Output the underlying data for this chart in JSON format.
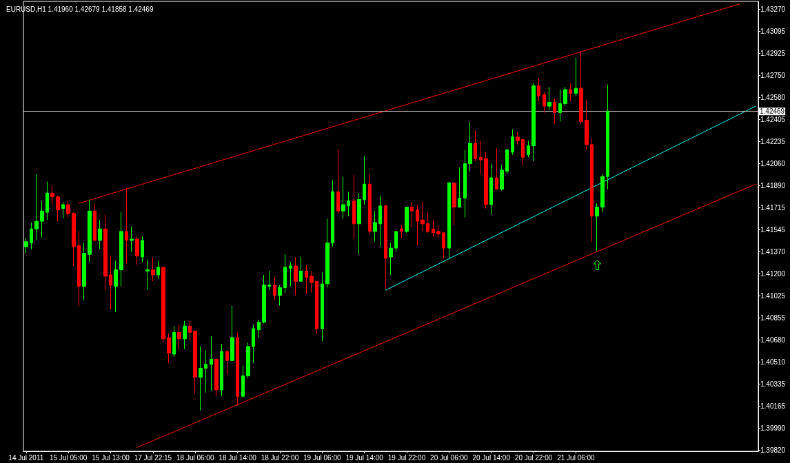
{
  "chart_data": {
    "type": "candlestick",
    "title": "EURUSD,H1 1.41960 1.42679 1.41858 1.42469",
    "categories": [
      "14 Jul 2011",
      null,
      null,
      null,
      null,
      null,
      null,
      null,
      "15 Jul 05:00",
      null,
      null,
      null,
      null,
      null,
      null,
      null,
      "15 Jul 13:00",
      null,
      null,
      null,
      null,
      null,
      null,
      null,
      "17 Jul 22:15",
      null,
      null,
      null,
      null,
      null,
      null,
      null,
      "18 Jul 06:00",
      null,
      null,
      null,
      null,
      null,
      null,
      null,
      "18 Jul 14:00",
      null,
      null,
      null,
      null,
      null,
      null,
      null,
      "18 Jul 22:00",
      null,
      null,
      null,
      null,
      null,
      null,
      null,
      "19 Jul 06:00",
      null,
      null,
      null,
      null,
      null,
      null,
      null,
      "19 Jul 14:00",
      null,
      null,
      null,
      null,
      null,
      null,
      null,
      "19 Jul 22:00",
      null,
      null,
      null,
      null,
      null,
      null,
      null,
      "20 Jul 06:00",
      null,
      null,
      null,
      null,
      null,
      null,
      null,
      "20 Jul 14:00",
      null,
      null,
      null,
      null,
      null,
      null,
      null,
      "20 Jul 22:00",
      null,
      null,
      null,
      null,
      null,
      null,
      null,
      "21 Jul 06:00",
      null,
      null,
      null,
      null,
      null,
      null,
      null,
      null,
      null,
      null,
      null,
      null,
      null,
      null,
      null,
      null,
      null,
      null,
      null,
      null,
      null,
      null,
      null,
      null,
      null,
      null,
      null,
      null,
      null,
      null,
      null,
      null,
      null,
      null
    ],
    "ohlc": [
      [
        1.4141,
        1.4148,
        1.4136,
        1.4145
      ],
      [
        1.4144,
        1.416,
        1.4139,
        1.4155
      ],
      [
        1.4155,
        1.4198,
        1.4146,
        1.4161
      ],
      [
        1.4161,
        1.4177,
        1.4148,
        1.4169
      ],
      [
        1.4168,
        1.4192,
        1.4162,
        1.4183
      ],
      [
        1.4183,
        1.4189,
        1.4174,
        1.418
      ],
      [
        1.418,
        1.4181,
        1.4161,
        1.417
      ],
      [
        1.4171,
        1.4176,
        1.4163,
        1.4174
      ],
      [
        1.4174,
        1.4177,
        1.4164,
        1.4167
      ],
      [
        1.4167,
        1.4168,
        1.4126,
        1.4141
      ],
      [
        1.4142,
        1.4153,
        1.4094,
        1.411
      ],
      [
        1.411,
        1.4144,
        1.4099,
        1.4136
      ],
      [
        1.4135,
        1.4178,
        1.4129,
        1.4169
      ],
      [
        1.4169,
        1.4175,
        1.4145,
        1.4146
      ],
      [
        1.4146,
        1.4162,
        1.4139,
        1.4155
      ],
      [
        1.4155,
        1.4166,
        1.4107,
        1.4118
      ],
      [
        1.4119,
        1.4134,
        1.4092,
        1.4111
      ],
      [
        1.411,
        1.413,
        1.409,
        1.4123
      ],
      [
        1.4123,
        1.4168,
        1.411,
        1.4153
      ],
      [
        1.4153,
        1.4187,
        1.4128,
        1.4146
      ],
      [
        1.4146,
        1.4157,
        1.4137,
        1.4147
      ],
      [
        1.4147,
        1.4149,
        1.4127,
        1.4134
      ],
      [
        1.4133,
        1.4149,
        1.4129,
        1.4146
      ],
      [
        1.4122,
        1.4131,
        1.4107,
        1.4123
      ],
      [
        1.4123,
        1.4133,
        1.4114,
        1.4119
      ],
      [
        1.4119,
        1.413,
        1.4116,
        1.4125
      ],
      [
        1.4125,
        1.4125,
        1.4066,
        1.4069
      ],
      [
        1.407,
        1.4073,
        1.405,
        1.4058
      ],
      [
        1.4057,
        1.4079,
        1.4055,
        1.4074
      ],
      [
        1.4074,
        1.408,
        1.4061,
        1.4069
      ],
      [
        1.4069,
        1.4083,
        1.4061,
        1.4079
      ],
      [
        1.4079,
        1.4083,
        1.4068,
        1.4074
      ],
      [
        1.4075,
        1.4075,
        1.4026,
        1.4039
      ],
      [
        1.4039,
        1.4063,
        1.4013,
        1.4046
      ],
      [
        1.4046,
        1.406,
        1.4027,
        1.4049
      ],
      [
        1.4049,
        1.4071,
        1.4028,
        1.4053
      ],
      [
        1.4053,
        1.4054,
        1.4024,
        1.4029
      ],
      [
        1.4029,
        1.4065,
        1.4024,
        1.4059
      ],
      [
        1.4059,
        1.406,
        1.4041,
        1.4052
      ],
      [
        1.4052,
        1.4095,
        1.4052,
        1.407
      ],
      [
        1.407,
        1.4074,
        1.4017,
        1.4024
      ],
      [
        1.4024,
        1.4048,
        1.4023,
        1.404
      ],
      [
        1.404,
        1.4066,
        1.4038,
        1.4063
      ],
      [
        1.4063,
        1.408,
        1.405,
        1.4077
      ],
      [
        1.4076,
        1.4084,
        1.407,
        1.4082
      ],
      [
        1.4082,
        1.4119,
        1.4081,
        1.4111
      ],
      [
        1.411,
        1.4122,
        1.4107,
        1.4111
      ],
      [
        1.4111,
        1.4117,
        1.4099,
        1.4103
      ],
      [
        1.4103,
        1.4111,
        1.4095,
        1.4109
      ],
      [
        1.4109,
        1.4135,
        1.4105,
        1.4125
      ],
      [
        1.4124,
        1.4129,
        1.411,
        1.4126
      ],
      [
        1.4126,
        1.4133,
        1.4103,
        1.4114
      ],
      [
        1.4114,
        1.4133,
        1.4114,
        1.4122
      ],
      [
        1.4122,
        1.4127,
        1.4104,
        1.4117
      ],
      [
        1.4118,
        1.4122,
        1.4105,
        1.4113
      ],
      [
        1.4114,
        1.4114,
        1.4073,
        1.4077
      ],
      [
        1.4077,
        1.4121,
        1.4067,
        1.4112
      ],
      [
        1.4112,
        1.4163,
        1.4109,
        1.4144
      ],
      [
        1.4144,
        1.4193,
        1.4141,
        1.4184
      ],
      [
        1.4184,
        1.4217,
        1.4167,
        1.4169
      ],
      [
        1.4169,
        1.4196,
        1.4163,
        1.4174
      ],
      [
        1.4173,
        1.4184,
        1.4165,
        1.4177
      ],
      [
        1.4177,
        1.4197,
        1.4147,
        1.4159
      ],
      [
        1.4159,
        1.4183,
        1.4135,
        1.4178
      ],
      [
        1.4178,
        1.4212,
        1.4174,
        1.419
      ],
      [
        1.419,
        1.4198,
        1.4151,
        1.4153
      ],
      [
        1.4153,
        1.4169,
        1.4145,
        1.416
      ],
      [
        1.4159,
        1.4181,
        1.4141,
        1.4173
      ],
      [
        1.4173,
        1.4174,
        1.4108,
        1.4132
      ],
      [
        1.4133,
        1.4144,
        1.4119,
        1.414
      ],
      [
        1.414,
        1.4153,
        1.4137,
        1.4153
      ],
      [
        1.4155,
        1.4158,
        1.4148,
        1.4153
      ],
      [
        1.4153,
        1.4172,
        1.4152,
        1.4172
      ],
      [
        1.4172,
        1.4176,
        1.4156,
        1.4169
      ],
      [
        1.417,
        1.4174,
        1.4142,
        1.4161
      ],
      [
        1.4162,
        1.4176,
        1.4153,
        1.4159
      ],
      [
        1.4159,
        1.4168,
        1.4152,
        1.4153
      ],
      [
        1.4155,
        1.4162,
        1.4149,
        1.4152
      ],
      [
        1.4153,
        1.4158,
        1.4148,
        1.4151
      ],
      [
        1.4152,
        1.4152,
        1.4132,
        1.414
      ],
      [
        1.414,
        1.4192,
        1.4132,
        1.4191
      ],
      [
        1.4191,
        1.4191,
        1.4158,
        1.4172
      ],
      [
        1.4172,
        1.4203,
        1.4172,
        1.4179
      ],
      [
        1.4179,
        1.4217,
        1.4164,
        1.4206
      ],
      [
        1.4206,
        1.4239,
        1.42,
        1.4222
      ],
      [
        1.4222,
        1.4232,
        1.4208,
        1.421
      ],
      [
        1.4211,
        1.4224,
        1.4198,
        1.4209
      ],
      [
        1.421,
        1.4215,
        1.4171,
        1.4174
      ],
      [
        1.4174,
        1.4206,
        1.4166,
        1.4195
      ],
      [
        1.4195,
        1.4218,
        1.4186,
        1.4186
      ],
      [
        1.4186,
        1.4205,
        1.4185,
        1.4201
      ],
      [
        1.42,
        1.4217,
        1.4198,
        1.4217
      ],
      [
        1.4215,
        1.4233,
        1.4213,
        1.4227
      ],
      [
        1.4227,
        1.4231,
        1.4221,
        1.4224
      ],
      [
        1.4225,
        1.4225,
        1.4205,
        1.4211
      ],
      [
        1.4213,
        1.4224,
        1.4211,
        1.422
      ],
      [
        1.422,
        1.4269,
        1.4208,
        1.4267
      ],
      [
        1.4267,
        1.4273,
        1.4255,
        1.4259
      ],
      [
        1.426,
        1.4262,
        1.4246,
        1.4251
      ],
      [
        1.4251,
        1.4266,
        1.4248,
        1.4254
      ],
      [
        1.4254,
        1.4257,
        1.4237,
        1.4246
      ],
      [
        1.4246,
        1.4264,
        1.4239,
        1.4253
      ],
      [
        1.4253,
        1.4266,
        1.4251,
        1.4264
      ],
      [
        1.4264,
        1.4269,
        1.4255,
        1.4261
      ],
      [
        1.4261,
        1.4289,
        1.4259,
        1.4265
      ],
      [
        1.4265,
        1.4294,
        1.4237,
        1.4239
      ],
      [
        1.424,
        1.4256,
        1.4217,
        1.4221
      ],
      [
        1.4221,
        1.4226,
        1.4145,
        1.4165
      ],
      [
        1.4165,
        1.4175,
        1.4138,
        1.4172
      ],
      [
        1.4172,
        1.4198,
        1.4168,
        1.4196
      ],
      [
        1.4196,
        1.42679,
        1.41858,
        1.42469
      ],
      null,
      null,
      null,
      null,
      null,
      null,
      null,
      null,
      null,
      null,
      null,
      null,
      null,
      null,
      null,
      null,
      null,
      null,
      null,
      null,
      null,
      null,
      null,
      null,
      null,
      null,
      null,
      null
    ],
    "colors": [
      "#00ff00",
      "#00ff00",
      "#00ff00",
      "#00ff00",
      "#00ff00",
      "#ff0000",
      "#ff0000",
      "#00ff00",
      "#ff0000",
      "#ff0000",
      "#ff0000",
      "#00ff00",
      "#00ff00",
      "#ff0000",
      "#00ff00",
      "#ff0000",
      "#ff0000",
      "#00ff00",
      "#00ff00",
      "#ff0000",
      "#00ff00",
      "#ff0000",
      "#00ff00",
      "#00ff00",
      "#ff0000",
      "#00ff00",
      "#ff0000",
      "#ff0000",
      "#00ff00",
      "#ff0000",
      "#00ff00",
      "#ff0000",
      "#ff0000",
      "#00ff00",
      "#00ff00",
      "#00ff00",
      "#ff0000",
      "#00ff00",
      "#ff0000",
      "#00ff00",
      "#ff0000",
      "#00ff00",
      "#00ff00",
      "#00ff00",
      "#00ff00",
      "#00ff00",
      "#00ff00",
      "#ff0000",
      "#00ff00",
      "#00ff00",
      "#00ff00",
      "#ff0000",
      "#00ff00",
      "#ff0000",
      "#ff0000",
      "#ff0000",
      "#00ff00",
      "#00ff00",
      "#00ff00",
      "#ff0000",
      "#00ff00",
      "#00ff00",
      "#ff0000",
      "#00ff00",
      "#00ff00",
      "#ff0000",
      "#00ff00",
      "#00ff00",
      "#ff0000",
      "#00ff00",
      "#00ff00",
      "#ff0000",
      "#00ff00",
      "#ff0000",
      "#ff0000",
      "#ff0000",
      "#ff0000",
      "#ff0000",
      "#ff0000",
      "#ff0000",
      "#00ff00",
      "#ff0000",
      "#00ff00",
      "#00ff00",
      "#00ff00",
      "#ff0000",
      "#ff0000",
      "#ff0000",
      "#00ff00",
      "#ff0000",
      "#00ff00",
      "#00ff00",
      "#00ff00",
      "#ff0000",
      "#ff0000",
      "#00ff00",
      "#00ff00",
      "#ff0000",
      "#ff0000",
      "#00ff00",
      "#ff0000",
      "#00ff00",
      "#00ff00",
      "#ff0000",
      "#00ff00",
      "#ff0000",
      "#ff0000",
      "#ff0000",
      "#00ff00",
      "#00ff00",
      "#00ff00",
      null,
      null,
      null,
      null,
      null,
      null,
      null,
      null,
      null,
      null,
      null,
      null,
      null,
      null,
      null,
      null,
      null,
      null,
      null,
      null,
      null,
      null,
      null,
      null,
      null,
      null,
      null,
      null
    ],
    "series": [
      {
        "type": "line",
        "color": "#ff0000",
        "values": [
          null,
          null,
          null,
          null,
          null,
          null,
          null,
          null,
          null,
          null,
          1.4175,
          null,
          null,
          null,
          null,
          null,
          null,
          null,
          null,
          null,
          null,
          null,
          null,
          null,
          null,
          null,
          null,
          null,
          null,
          null,
          null,
          null,
          null,
          null,
          null,
          null,
          null,
          null,
          null,
          null,
          null,
          null,
          null,
          null,
          null,
          null,
          null,
          null,
          null,
          null,
          null,
          null,
          null,
          null,
          null,
          null,
          null,
          null,
          null,
          null,
          null,
          null,
          null,
          null,
          null,
          null,
          null,
          null,
          null,
          null,
          null,
          null,
          null,
          null,
          null,
          null,
          null,
          null,
          null,
          null,
          null,
          null,
          null,
          null,
          null,
          null,
          null,
          null,
          null,
          null,
          null,
          null,
          null,
          null,
          null,
          null,
          null,
          null,
          null,
          null,
          null,
          null,
          null,
          null,
          null,
          null,
          null,
          null,
          null,
          null,
          null,
          null,
          null,
          null,
          null,
          null,
          null,
          null,
          null,
          null,
          null,
          null,
          null,
          null,
          null,
          null,
          null,
          null,
          null,
          null,
          null,
          null,
          null,
          null,
          null,
          1.4331,
          null,
          null,
          null
        ]
      },
      {
        "type": "line",
        "color": "#ff0000",
        "values": [
          null,
          null,
          null,
          null,
          null,
          null,
          null,
          null,
          null,
          null,
          null,
          null,
          null,
          null,
          null,
          null,
          null,
          null,
          null,
          null,
          null,
          1.3984,
          null,
          null,
          null,
          null,
          null,
          null,
          null,
          null,
          null,
          null,
          null,
          null,
          null,
          null,
          null,
          null,
          null,
          null,
          null,
          null,
          null,
          null,
          null,
          null,
          null,
          null,
          null,
          null,
          null,
          null,
          null,
          null,
          null,
          null,
          null,
          null,
          null,
          null,
          null,
          null,
          null,
          null,
          null,
          null,
          null,
          null,
          null,
          null,
          null,
          null,
          null,
          null,
          null,
          null,
          null,
          null,
          null,
          null,
          null,
          null,
          null,
          null,
          null,
          null,
          null,
          null,
          null,
          null,
          null,
          null,
          null,
          null,
          null,
          null,
          null,
          null,
          null,
          null,
          null,
          null,
          null,
          null,
          null,
          null,
          null,
          null,
          null,
          null,
          null,
          null,
          null,
          null,
          null,
          null,
          null,
          null,
          null,
          null,
          null,
          null,
          null,
          null,
          null,
          null,
          null,
          null,
          null,
          null,
          null,
          null,
          null,
          null,
          null,
          null,
          null,
          null,
          1.419
        ]
      },
      {
        "type": "line",
        "color": "#00ffff",
        "values": [
          null,
          null,
          null,
          null,
          null,
          null,
          null,
          null,
          null,
          null,
          null,
          null,
          null,
          null,
          null,
          null,
          null,
          null,
          null,
          null,
          null,
          null,
          null,
          null,
          null,
          null,
          null,
          null,
          null,
          null,
          null,
          null,
          null,
          null,
          null,
          null,
          null,
          null,
          null,
          null,
          null,
          null,
          null,
          null,
          null,
          null,
          null,
          null,
          null,
          null,
          null,
          null,
          null,
          null,
          null,
          null,
          null,
          null,
          null,
          null,
          null,
          null,
          null,
          null,
          null,
          null,
          null,
          null,
          1.4107,
          null,
          null,
          null,
          null,
          null,
          null,
          null,
          null,
          null,
          null,
          null,
          null,
          null,
          null,
          null,
          null,
          null,
          null,
          null,
          null,
          null,
          null,
          null,
          null,
          null,
          null,
          null,
          null,
          null,
          null,
          null,
          null,
          null,
          null,
          null,
          null,
          null,
          null,
          null,
          null,
          null,
          null,
          null,
          null,
          null,
          null,
          null,
          null,
          null,
          null,
          null,
          null,
          null,
          null,
          null,
          null,
          null,
          null,
          null,
          null,
          null,
          null,
          null,
          null,
          null,
          null,
          null,
          null,
          null,
          1.4251
        ]
      }
    ],
    "ylim": [
      1.3981,
      1.4333
    ],
    "yticks": [
      {
        "value": 1.3982,
        "label": "1.39820"
      },
      {
        "value": 1.3999,
        "label": "1.39990"
      },
      {
        "value": 1.40165,
        "label": "1.40165"
      },
      {
        "value": 1.40335,
        "label": "1.40335"
      },
      {
        "value": 1.4051,
        "label": "1.40510"
      },
      {
        "value": 1.4068,
        "label": "1.40680"
      },
      {
        "value": 1.40855,
        "label": "1.40855"
      },
      {
        "value": 1.41025,
        "label": "1.41025"
      },
      {
        "value": 1.412,
        "label": "1.41200"
      },
      {
        "value": 1.4137,
        "label": "1.41370"
      },
      {
        "value": 1.41545,
        "label": "1.41545"
      },
      {
        "value": 1.41715,
        "label": "1.41715"
      },
      {
        "value": 1.4189,
        "label": "1.41890"
      },
      {
        "value": 1.4206,
        "label": "1.42060"
      },
      {
        "value": 1.42235,
        "label": "1.42235"
      },
      {
        "value": 1.42405,
        "label": "1.42405"
      },
      {
        "value": 1.4258,
        "label": "1.42580"
      },
      {
        "value": 1.4275,
        "label": "1.42750"
      },
      {
        "value": 1.42925,
        "label": "1.42925"
      },
      {
        "value": 1.43095,
        "label": "1.43095"
      },
      {
        "value": 1.4327,
        "label": "1.43270"
      }
    ],
    "ref_lines": [
      {
        "axis": "y",
        "value": 1.42469,
        "label": "1.42469",
        "color": "#c0c0c0"
      }
    ]
  }
}
